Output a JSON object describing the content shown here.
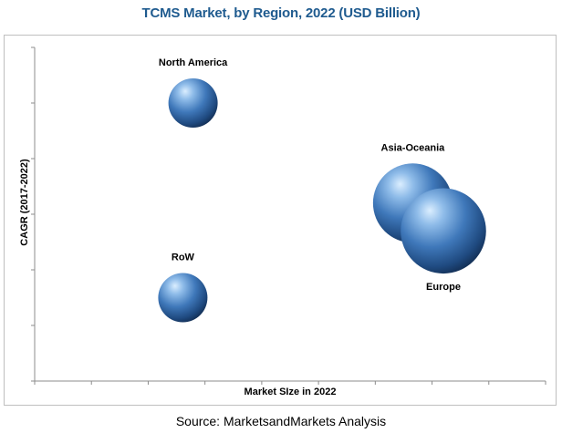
{
  "chart_data": {
    "type": "scatter",
    "subtype": "bubble",
    "title": "TCMS Market, by Region, 2022 (USD Billion)",
    "xlabel": "Market SIze in 2022",
    "ylabel": "CAGR (2017-2022)",
    "xlim": [
      0,
      10
    ],
    "ylim": [
      0,
      6
    ],
    "grid": false,
    "legend": "none",
    "tick_labels_shown": false,
    "series": [
      {
        "points": [
          {
            "label": "North America",
            "x": 3.1,
            "y": 5.0,
            "size": 1.0
          },
          {
            "label": "Asia-Oceania",
            "x": 7.4,
            "y": 3.2,
            "size": 2.6
          },
          {
            "label": "Europe",
            "x": 8.0,
            "y": 2.7,
            "size": 3.0
          },
          {
            "label": "RoW",
            "x": 2.9,
            "y": 1.5,
            "size": 1.0
          }
        ]
      }
    ],
    "colors": {
      "bubble_light": "#a9cdf2",
      "bubble_mid": "#4d86c6",
      "bubble_dark": "#16355f"
    }
  },
  "footer": {
    "source": "Source: MarketsandMarkets Analysis"
  }
}
